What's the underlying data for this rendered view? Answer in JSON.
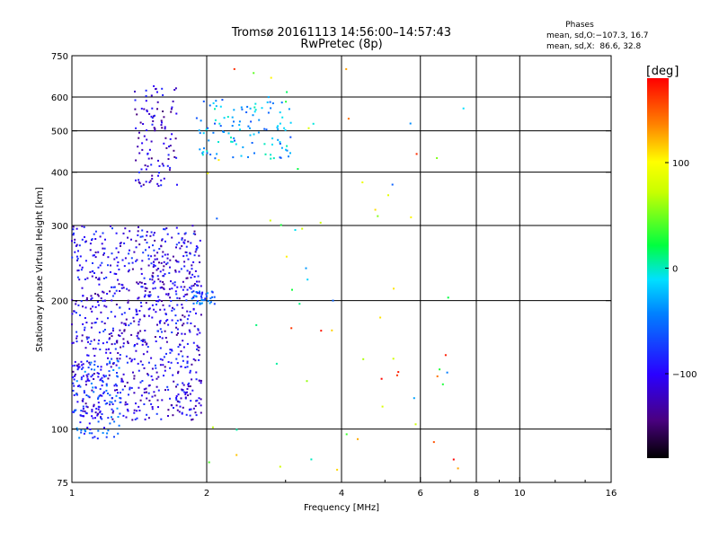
{
  "header": {
    "title": "Tromsø 20161113 14:56:00–14:57:43",
    "subtitle": "RwPretec (8p)"
  },
  "stats": {
    "heading": "Phases",
    "line1": "mean, sd,O:−107.3, 16.7",
    "line2": "mean, sd,X:  86.6, 32.8"
  },
  "colorbar": {
    "unit": "deg",
    "ticks": [
      {
        "value": 100,
        "label": "100"
      },
      {
        "value": 0,
        "label": "0"
      },
      {
        "value": -100,
        "label": "−100"
      }
    ],
    "range": [
      -180,
      180
    ]
  },
  "chart_data": {
    "type": "scatter",
    "title": "Tromsø 20161113 14:56:00–14:57:43",
    "xlabel": "Frequency [MHz]",
    "ylabel": "Stationary phase Virtual Height [km]",
    "x_scale": "log",
    "y_scale": "log",
    "xlim": [
      1,
      16
    ],
    "ylim": [
      75,
      750
    ],
    "x_ticks": [
      1,
      2,
      4,
      6,
      8,
      10,
      16
    ],
    "y_ticks": [
      75,
      100,
      200,
      300,
      400,
      500,
      600,
      750
    ],
    "grid_x": [
      2,
      4,
      6,
      8,
      10
    ],
    "grid_y": [
      100,
      200,
      300,
      400,
      500,
      600
    ],
    "color_scale": "phase in degrees, rainbow (-180 black/purple → 180 red)",
    "point_groups": [
      {
        "label": "O-mode F layer trace (dense)",
        "x_range": [
          1.0,
          1.95
        ],
        "y_range": [
          105,
          300
        ],
        "phase": -105,
        "n": 900
      },
      {
        "label": "O-mode F2 upper trace",
        "x_range": [
          1.38,
          1.72
        ],
        "y_range": [
          370,
          640
        ],
        "phase": -115,
        "n": 110
      },
      {
        "label": "X-mode spread echoes",
        "x_range": [
          1.9,
          3.1
        ],
        "y_range": [
          430,
          600
        ],
        "phase": -30,
        "n": 110
      },
      {
        "label": "low echoes",
        "x_range": [
          1.0,
          1.3
        ],
        "y_range": [
          95,
          145
        ],
        "phase": -70,
        "n": 120
      },
      {
        "label": "cluster near 2 MHz",
        "x_range": [
          1.85,
          2.1
        ],
        "y_range": [
          195,
          210
        ],
        "phase": -60,
        "n": 40
      },
      {
        "label": "scattered echoes",
        "x_range": [
          2.0,
          7.5
        ],
        "y_range": [
          80,
          700
        ],
        "phase": 60,
        "n": 70
      }
    ]
  }
}
